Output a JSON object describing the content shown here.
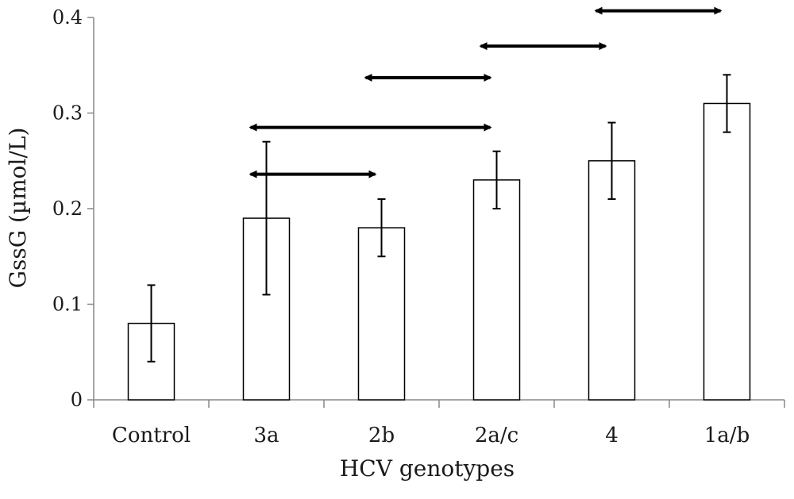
{
  "chart_data": {
    "type": "bar",
    "title": "",
    "xlabel": "HCV genotypes",
    "ylabel": "GssG (µmol/L)",
    "categories": [
      "Control",
      "3a",
      "2b",
      "2a/c",
      "4",
      "1a/b"
    ],
    "values": [
      0.08,
      0.19,
      0.18,
      0.23,
      0.25,
      0.31
    ],
    "error_low": [
      0.04,
      0.11,
      0.15,
      0.2,
      0.21,
      0.28
    ],
    "error_high": [
      0.12,
      0.27,
      0.21,
      0.26,
      0.29,
      0.34
    ],
    "ylim": [
      0,
      0.4
    ],
    "yticks": [
      "0",
      "0.1",
      "0.2",
      "0.3",
      "0.4"
    ],
    "grid": false,
    "legend": "none",
    "comparisons": [
      {
        "from": "3a",
        "to": "2b",
        "level": 0.236
      },
      {
        "from": "3a",
        "to": "2a/c",
        "level": 0.285
      },
      {
        "from": "2b",
        "to": "2a/c",
        "level": 0.337
      },
      {
        "from": "2a/c",
        "to": "4",
        "level": 0.37
      },
      {
        "from": "4",
        "to": "1a/b",
        "level": 0.407
      }
    ],
    "colors": {
      "bar_fill": "#ffffff",
      "bar_stroke": "#000000",
      "axis": "#888888",
      "error_bar": "#000000",
      "arrow": "#000000"
    }
  }
}
